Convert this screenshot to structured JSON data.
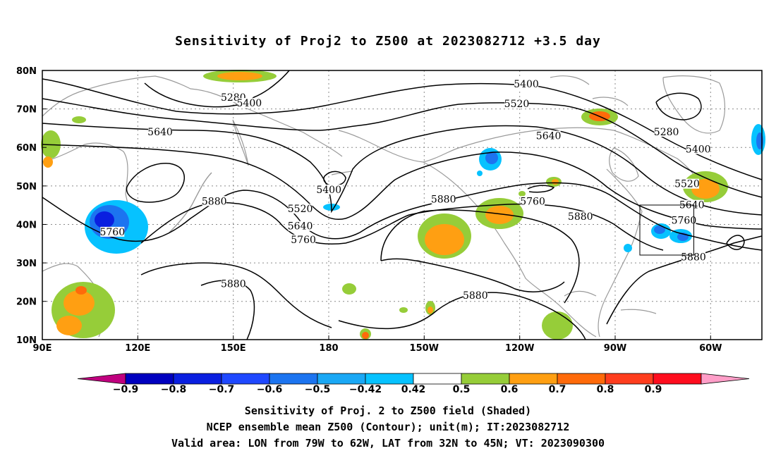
{
  "title": "Sensitivity of Proj2 to Z500 at 2023082712 +3.5 day",
  "lon_labels": [
    "90E",
    "120E",
    "150E",
    "180",
    "150W",
    "120W",
    "90W",
    "60W"
  ],
  "lat_labels": [
    "80N",
    "70N",
    "60N",
    "50N",
    "40N",
    "30N",
    "20N",
    "10N"
  ],
  "contour_labels": [
    {
      "text": "5280",
      "lon": 150,
      "lat": 72.5
    },
    {
      "text": "5400",
      "lon": 155,
      "lat": 71
    },
    {
      "text": "5400",
      "lon": -118,
      "lat": 76
    },
    {
      "text": "5520",
      "lon": -121,
      "lat": 70.8
    },
    {
      "text": "5640",
      "lon": 127,
      "lat": 63.5
    },
    {
      "text": "5640",
      "lon": -111,
      "lat": 62.5
    },
    {
      "text": "5280",
      "lon": -74,
      "lat": 63.5
    },
    {
      "text": "5400",
      "lon": -64,
      "lat": 59
    },
    {
      "text": "5400",
      "lon": 180,
      "lat": 48.5
    },
    {
      "text": "5520",
      "lon": 171,
      "lat": 43.5
    },
    {
      "text": "5640",
      "lon": 171,
      "lat": 39
    },
    {
      "text": "5760",
      "lon": 172,
      "lat": 35.5
    },
    {
      "text": "5880",
      "lon": 144,
      "lat": 45.5
    },
    {
      "text": "5760",
      "lon": 112,
      "lat": 37.5
    },
    {
      "text": "5880",
      "lon": -144,
      "lat": 46
    },
    {
      "text": "5760",
      "lon": -116,
      "lat": 45.5
    },
    {
      "text": "5880",
      "lon": -101,
      "lat": 41.5
    },
    {
      "text": "5520",
      "lon": -67.5,
      "lat": 50
    },
    {
      "text": "5640",
      "lon": -66,
      "lat": 44.5
    },
    {
      "text": "5760",
      "lon": -68.5,
      "lat": 40.5
    },
    {
      "text": "5880",
      "lon": -65.5,
      "lat": 31
    },
    {
      "text": "5880",
      "lon": 150,
      "lat": 24
    },
    {
      "text": "5880",
      "lon": -134,
      "lat": 21
    }
  ],
  "colorbar": {
    "labels": [
      "−0.9",
      "−0.8",
      "−0.7",
      "−0.6",
      "−0.5",
      "−0.42",
      "0.42",
      "0.5",
      "0.6",
      "0.7",
      "0.8",
      "0.9"
    ],
    "colors": [
      "#c0007f",
      "#0000bf",
      "#0a1fe0",
      "#1f48ff",
      "#1c74f0",
      "#1aa8f5",
      "#06c2ff",
      "#ffffff",
      "#96cd39",
      "#ff9f12",
      "#ff6a0a",
      "#ff3d1e",
      "#ff0d1e",
      "#ff9ec8"
    ]
  },
  "caption": {
    "line1": "Sensitivity of Proj. 2 to Z500 field (Shaded)",
    "line2": "NCEP ensemble mean Z500 (Contour); unit(m); IT:2023082712",
    "line3": "Valid area: LON from 79W to 62W, LAT from 32N to 45N; VT: 2023090300"
  }
}
